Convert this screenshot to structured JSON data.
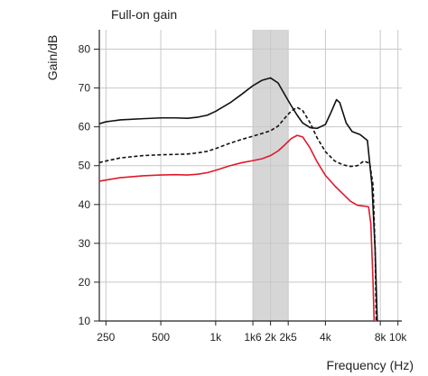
{
  "chart_data": {
    "type": "line",
    "title": "Full-on gain",
    "xlabel": "Frequency (Hz)",
    "ylabel": "Gain/dB",
    "x_scale": "log",
    "xlim": [
      230,
      10500
    ],
    "ylim": [
      10,
      85
    ],
    "grid": true,
    "x_ticks": [
      {
        "value": 250,
        "label": "250"
      },
      {
        "value": 500,
        "label": "500"
      },
      {
        "value": 1000,
        "label": "1k"
      },
      {
        "value": 1600,
        "label": "1k6"
      },
      {
        "value": 2000,
        "label": "2k"
      },
      {
        "value": 2500,
        "label": "2k5"
      },
      {
        "value": 4000,
        "label": "4k"
      },
      {
        "value": 8000,
        "label": "8k"
      },
      {
        "value": 10000,
        "label": "10k"
      }
    ],
    "y_ticks": [
      10,
      20,
      30,
      40,
      50,
      60,
      70,
      80
    ],
    "highlight_band": {
      "x_from": 1600,
      "x_to": 2500,
      "color": "#d6d6d6"
    },
    "series": [
      {
        "style": "solid",
        "color": "#111111",
        "points": [
          [
            230,
            60.8
          ],
          [
            250,
            61.3
          ],
          [
            300,
            61.8
          ],
          [
            400,
            62.1
          ],
          [
            500,
            62.3
          ],
          [
            600,
            62.3
          ],
          [
            700,
            62.2
          ],
          [
            800,
            62.5
          ],
          [
            900,
            63.0
          ],
          [
            1000,
            64.0
          ],
          [
            1200,
            66.2
          ],
          [
            1400,
            68.5
          ],
          [
            1600,
            70.6
          ],
          [
            1800,
            72.0
          ],
          [
            2000,
            72.6
          ],
          [
            2200,
            71.3
          ],
          [
            2400,
            68.2
          ],
          [
            2600,
            65.4
          ],
          [
            2800,
            63.0
          ],
          [
            3000,
            61.0
          ],
          [
            3300,
            59.8
          ],
          [
            3600,
            59.6
          ],
          [
            4000,
            60.6
          ],
          [
            4300,
            63.8
          ],
          [
            4600,
            67.0
          ],
          [
            4800,
            66.2
          ],
          [
            5200,
            61.0
          ],
          [
            5600,
            58.8
          ],
          [
            6200,
            58.0
          ],
          [
            6800,
            56.5
          ],
          [
            7200,
            45.0
          ],
          [
            7500,
            28.0
          ],
          [
            7700,
            10.0
          ]
        ]
      },
      {
        "style": "dashed",
        "color": "#111111",
        "points": [
          [
            230,
            50.8
          ],
          [
            250,
            51.2
          ],
          [
            300,
            52.0
          ],
          [
            400,
            52.6
          ],
          [
            500,
            52.8
          ],
          [
            600,
            52.9
          ],
          [
            700,
            53.0
          ],
          [
            800,
            53.3
          ],
          [
            900,
            53.7
          ],
          [
            1000,
            54.4
          ],
          [
            1200,
            55.8
          ],
          [
            1400,
            56.8
          ],
          [
            1600,
            57.6
          ],
          [
            1800,
            58.3
          ],
          [
            2000,
            59.0
          ],
          [
            2200,
            60.2
          ],
          [
            2400,
            62.3
          ],
          [
            2600,
            64.1
          ],
          [
            2800,
            65.0
          ],
          [
            3000,
            64.2
          ],
          [
            3300,
            61.0
          ],
          [
            3600,
            57.2
          ],
          [
            4000,
            53.6
          ],
          [
            4500,
            51.2
          ],
          [
            5000,
            50.2
          ],
          [
            5500,
            49.8
          ],
          [
            6000,
            50.0
          ],
          [
            6500,
            51.2
          ],
          [
            7000,
            50.6
          ],
          [
            7300,
            45.0
          ],
          [
            7500,
            28.0
          ],
          [
            7600,
            10.0
          ]
        ]
      },
      {
        "style": "solid",
        "color": "#e0192b",
        "points": [
          [
            230,
            46.0
          ],
          [
            250,
            46.3
          ],
          [
            300,
            46.9
          ],
          [
            400,
            47.4
          ],
          [
            500,
            47.6
          ],
          [
            600,
            47.7
          ],
          [
            700,
            47.6
          ],
          [
            800,
            47.8
          ],
          [
            900,
            48.2
          ],
          [
            1000,
            48.8
          ],
          [
            1200,
            50.0
          ],
          [
            1400,
            50.8
          ],
          [
            1600,
            51.3
          ],
          [
            1800,
            51.8
          ],
          [
            2000,
            52.6
          ],
          [
            2200,
            53.8
          ],
          [
            2400,
            55.4
          ],
          [
            2600,
            57.0
          ],
          [
            2800,
            57.8
          ],
          [
            3000,
            57.4
          ],
          [
            3300,
            54.5
          ],
          [
            3600,
            51.0
          ],
          [
            4000,
            47.5
          ],
          [
            4500,
            44.8
          ],
          [
            5000,
            42.7
          ],
          [
            5500,
            40.8
          ],
          [
            6000,
            39.8
          ],
          [
            6500,
            39.6
          ],
          [
            6900,
            39.4
          ],
          [
            7100,
            35.0
          ],
          [
            7300,
            20.0
          ],
          [
            7400,
            10.0
          ]
        ]
      }
    ]
  }
}
